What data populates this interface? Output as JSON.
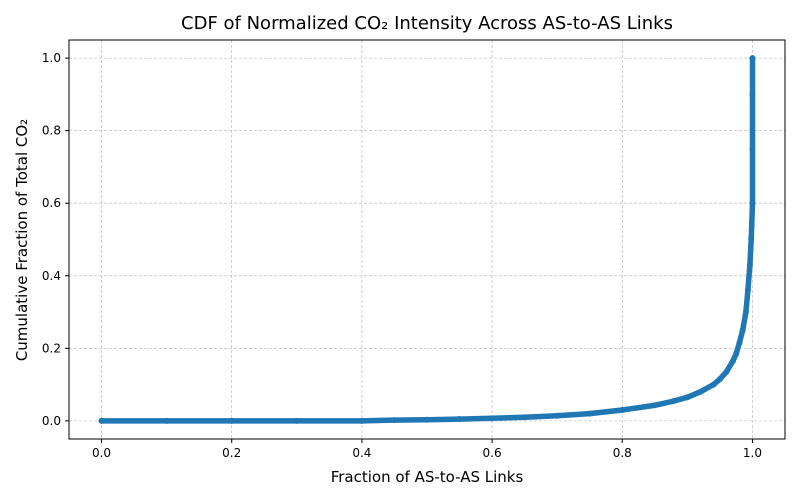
{
  "chart_data": {
    "type": "line",
    "title": "CDF of Normalized CO₂ Intensity Across AS-to-AS Links",
    "xlabel": "Fraction of AS-to-AS Links",
    "ylabel": "Cumulative Fraction of Total CO₂",
    "xlim": [
      -0.05,
      1.05
    ],
    "ylim": [
      -0.05,
      1.05
    ],
    "x_ticks": [
      0.0,
      0.2,
      0.4,
      0.6,
      0.8,
      1.0
    ],
    "x_tick_labels": [
      "0.0",
      "0.2",
      "0.4",
      "0.6",
      "0.8",
      "1.0"
    ],
    "y_ticks": [
      0.0,
      0.2,
      0.4,
      0.6,
      0.8,
      1.0
    ],
    "y_tick_labels": [
      "0.0",
      "0.2",
      "0.4",
      "0.6",
      "0.8",
      "1.0"
    ],
    "grid": true,
    "marker": "dot",
    "series": [
      {
        "color": "#1f77b4",
        "x": [
          0.0,
          0.1,
          0.2,
          0.3,
          0.4,
          0.45,
          0.5,
          0.55,
          0.6,
          0.65,
          0.7,
          0.75,
          0.8,
          0.85,
          0.88,
          0.9,
          0.92,
          0.94,
          0.95,
          0.96,
          0.97,
          0.975,
          0.98,
          0.985,
          0.99,
          0.993,
          0.996,
          0.998,
          1.0,
          1.0,
          1.0,
          1.0
        ],
        "y": [
          0.0,
          0.0,
          0.0,
          0.0,
          0.0,
          0.002,
          0.003,
          0.005,
          0.007,
          0.01,
          0.014,
          0.02,
          0.03,
          0.043,
          0.055,
          0.065,
          0.08,
          0.1,
          0.115,
          0.135,
          0.165,
          0.185,
          0.215,
          0.25,
          0.3,
          0.36,
          0.43,
          0.5,
          0.6,
          0.75,
          0.9,
          1.0
        ]
      }
    ]
  }
}
